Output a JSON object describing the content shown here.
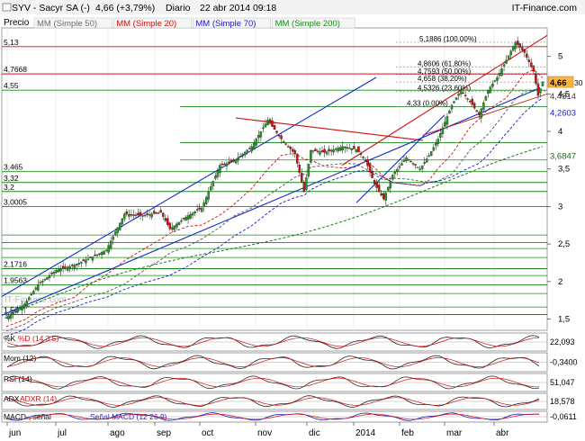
{
  "header": {
    "ticker": "SYV - Sacyr SA (-)",
    "quote": "4,66 (+3,79%)",
    "period": "Diario",
    "datetime": "22 abr 2014 09:18",
    "brand": "IT-Finance.com"
  },
  "legend": {
    "price": "Precio",
    "items": [
      {
        "label": "MM (Simple 50)",
        "color": "#6e6e6e"
      },
      {
        "label": "MM (Simple 20)",
        "color": "#d01010"
      },
      {
        "label": "MM (Simple 70)",
        "color": "#1a1ac8"
      },
      {
        "label": "MM (Simple 200)",
        "color": "#1a8a1a"
      }
    ]
  },
  "watermark": "IT-Finance.com",
  "colors": {
    "up": "#1f9a1f",
    "down": "#d01010",
    "ma20": "#d01010",
    "ma50": "#555555",
    "ma70": "#1a1ac8",
    "ma200": "#1a7a1a",
    "trend_blue": "#1030c8",
    "trend_red": "#d01010",
    "hline": "#1a8a1a",
    "fill_pos": "#7fbf7f",
    "fill_neg": "#d98c8c"
  },
  "price_axis": {
    "ticks": [
      "5",
      "4,5",
      "4",
      "3,5",
      "3",
      "2,5",
      "2",
      "1,5"
    ]
  },
  "left_levels": [
    "5,13",
    "4,7668",
    "4,55",
    "3,465",
    "3,32",
    "3,2",
    "3,0005",
    "2,1716",
    "1,9563",
    "1,56"
  ],
  "fib_labels": [
    "5,1886 (100,00%)",
    "4,8606 (61,80%)",
    "4,7593 (50,00%)",
    "4,658 (38,20%)",
    "4,5326 (23,60%)",
    "4,33 (0,00%)"
  ],
  "right_labels": [
    {
      "text": "4,66",
      "extra": "30",
      "type": "current"
    },
    {
      "text": "4,4814",
      "type": "gray"
    },
    {
      "text": "4,2603",
      "type": "blue"
    },
    {
      "text": "3,6847",
      "type": "green"
    }
  ],
  "x_axis": {
    "labels": [
      "jun",
      "jul",
      "ago",
      "sep",
      "oct",
      "nov",
      "dic",
      "2014",
      "feb",
      "mar",
      "abr"
    ]
  },
  "chart_data": {
    "type": "candlestick",
    "x_start": "2013-06-03",
    "x_end": "2014-04-22",
    "ylim": [
      1.35,
      5.38
    ],
    "last_close": 4.66,
    "change_pct": 3.79,
    "price_path": [
      [
        0,
        1.52
      ],
      [
        8,
        1.7
      ],
      [
        14,
        1.96
      ],
      [
        22,
        2.15
      ],
      [
        30,
        2.22
      ],
      [
        36,
        2.3
      ],
      [
        44,
        2.42
      ],
      [
        52,
        2.9
      ],
      [
        60,
        2.88
      ],
      [
        68,
        2.92
      ],
      [
        72,
        2.7
      ],
      [
        80,
        2.88
      ],
      [
        86,
        2.98
      ],
      [
        94,
        3.55
      ],
      [
        100,
        3.6
      ],
      [
        108,
        3.8
      ],
      [
        115,
        4.15
      ],
      [
        121,
        3.9
      ],
      [
        127,
        3.7
      ],
      [
        131,
        3.2
      ],
      [
        134,
        3.75
      ],
      [
        140,
        3.72
      ],
      [
        148,
        3.8
      ],
      [
        154,
        3.76
      ],
      [
        158,
        3.62
      ],
      [
        162,
        3.3
      ],
      [
        166,
        3.1
      ],
      [
        170,
        3.42
      ],
      [
        176,
        3.65
      ],
      [
        182,
        3.5
      ],
      [
        186,
        3.68
      ],
      [
        190,
        3.9
      ],
      [
        196,
        4.35
      ],
      [
        200,
        4.55
      ],
      [
        204,
        4.4
      ],
      [
        208,
        4.22
      ],
      [
        212,
        4.55
      ],
      [
        216,
        4.72
      ],
      [
        220,
        4.95
      ],
      [
        224,
        5.19
      ],
      [
        228,
        5.05
      ],
      [
        232,
        4.8
      ],
      [
        234,
        4.48
      ],
      [
        236,
        4.66
      ]
    ],
    "horizontal_levels": [
      5.13,
      4.7668,
      4.55,
      3.465,
      3.32,
      3.2,
      3.0005,
      2.1716,
      1.9563,
      1.56
    ],
    "fibonacci": [
      {
        "value": 5.1886,
        "pct": 100.0
      },
      {
        "value": 4.8606,
        "pct": 61.8
      },
      {
        "value": 4.7593,
        "pct": 50.0
      },
      {
        "value": 4.658,
        "pct": 38.2
      },
      {
        "value": 4.5326,
        "pct": 23.6
      },
      {
        "value": 4.33,
        "pct": 0.0
      }
    ],
    "indicators": [
      {
        "name": "%K",
        "label": "%D (14 3 5)",
        "value": "22,093"
      },
      {
        "name": "Mom (12)",
        "value": "-0,3400"
      },
      {
        "name": "RSI (14)",
        "value": "51,047"
      },
      {
        "name": "ADX",
        "label": "ADXR (14)",
        "value": "18,578"
      },
      {
        "name": "MACD-, señal",
        "label": "Señal MACD (12 26 9)",
        "value": "-0,0611"
      }
    ]
  }
}
